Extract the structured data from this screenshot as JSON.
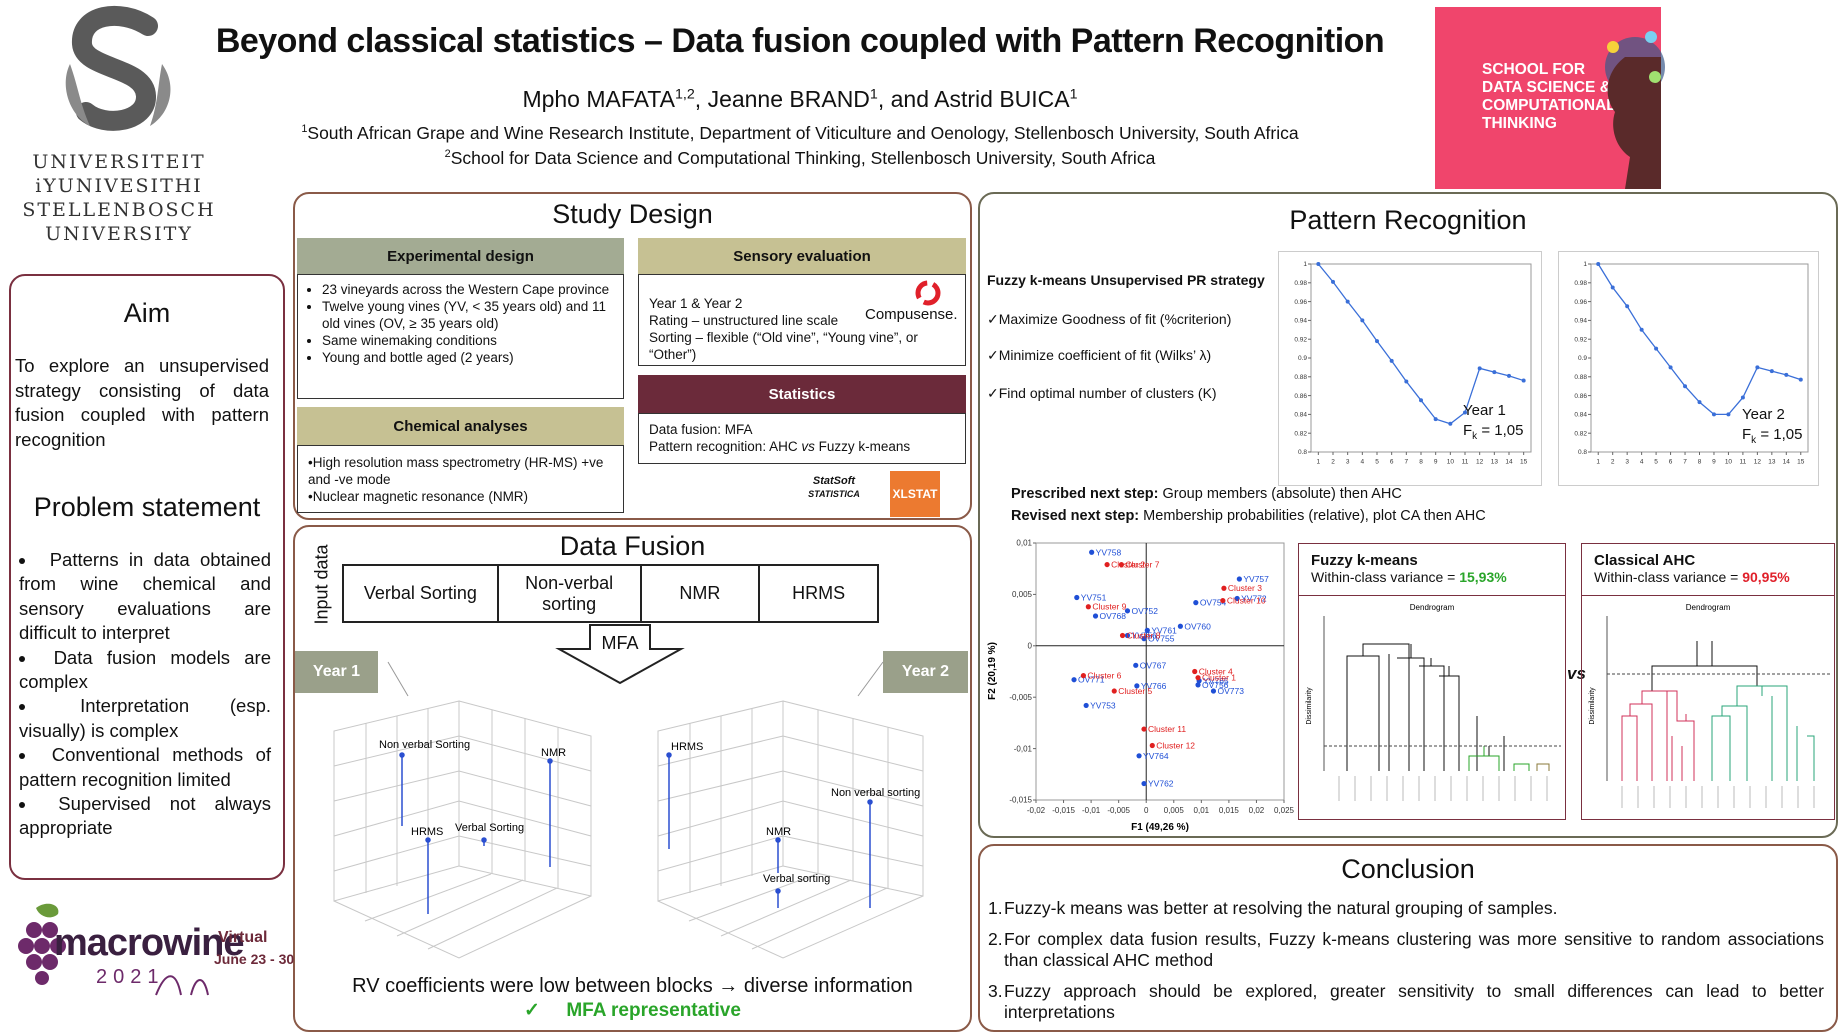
{
  "header": {
    "title": "Beyond classical statistics – Data fusion coupled with Pattern Recognition",
    "authors": [
      {
        "name": "Mpho MAFATA",
        "sup": "1,2",
        "after": ","
      },
      {
        "name": "Jeanne BRAND",
        "sup": "1",
        "after": ", and"
      },
      {
        "name": "Astrid BUICA",
        "sup": "1"
      }
    ],
    "affiliations": [
      {
        "sup": "1",
        "text": "South African Grape and Wine Research Institute, Department of Viticulture and Oenology, Stellenbosch University, South Africa"
      },
      {
        "sup": "2",
        "text": "School for Data Science and Computational Thinking, Stellenbosch University, South Africa"
      }
    ]
  },
  "university": {
    "lines": [
      "UNIVERSITEIT",
      "iYUNIVESITHI",
      "STELLENBOSCH",
      "UNIVERSITY"
    ]
  },
  "school": {
    "lines": [
      "SCHOOL FOR",
      "DATA SCIENCE &",
      "COMPUTATIONAL",
      "THINKING"
    ]
  },
  "aim": {
    "title": "Aim",
    "text": "To explore an unsupervised strategy consisting of data fusion coupled with pattern recognition"
  },
  "problem": {
    "title": "Problem statement",
    "items": [
      "Patterns in data obtained from wine chemical and sensory evaluations are difficult to interpret",
      "Data fusion models are complex",
      "Interpretation (esp. visually) is complex",
      "Conventional methods of pattern recognition limited",
      "Supervised not always appropriate"
    ]
  },
  "study_design": {
    "title": "Study Design",
    "experimental": {
      "title": "Experimental design",
      "items": [
        "23 vineyards across the Western Cape province",
        "Twelve young vines (YV, < 35 years old) and 11 old vines (OV, ≥ 35 years old)",
        "Same winemaking conditions",
        "Young and bottle aged (2 years)"
      ]
    },
    "chemical": {
      "title": "Chemical analyses",
      "lines": [
        "•High resolution mass spectrometry (HR-MS) +ve and -ve mode",
        "•Nuclear magnetic resonance (NMR)"
      ]
    },
    "sensory": {
      "title": "Sensory evaluation",
      "lines": [
        "Year 1 & Year 2",
        "Rating – unstructured line scale",
        "Sorting – flexible (“Old vine”, “Young vine”, or “Other”)"
      ],
      "brand": "Compusense."
    },
    "statistics": {
      "title": "Statistics",
      "line": "Data fusion: MFA",
      "recognition": {
        "before": "Pattern recognition: AHC",
        "em": "vs",
        "after": "Fuzzy k-means"
      }
    },
    "software": [
      "StatSoft",
      "STATISTICA",
      "XLSTAT"
    ]
  },
  "data_fusion": {
    "title": "Data Fusion",
    "input_label": "Input data",
    "blocks": [
      "Verbal Sorting",
      "Non-verbal sorting",
      "NMR",
      "HRMS"
    ],
    "method": "MFA",
    "years": [
      "Year 1",
      "Year 2"
    ],
    "plots": [
      {
        "labels": [
          "Non verbal Sorting",
          "NMR",
          "HRMS",
          "Verbal Sorting"
        ]
      },
      {
        "labels": [
          "HRMS",
          "Non verbal sorting",
          "NMR",
          "Verbal sorting"
        ]
      }
    ],
    "finding": "RV coefficients were low between blocks → diverse information",
    "check": "✓",
    "conclusion": "MFA representative"
  },
  "pattern_recognition": {
    "title": "Pattern Recognition",
    "strategy": {
      "title": "Fuzzy k-means Unsupervised PR strategy",
      "items": [
        "✓Maximize Goodness of fit (%criterion)",
        "✓Minimize coefficient of fit (Wilks’ λ)",
        "✓Find optimal number of clusters (K)"
      ]
    },
    "charts": [
      {
        "type": "line",
        "label": "Year 1",
        "f": "F",
        "f_sub": "k",
        "f_value": "= 1,05",
        "color": "#3a6fd8",
        "x": [
          1,
          2,
          3,
          4,
          5,
          6,
          7,
          8,
          9,
          10,
          11,
          12,
          13,
          14,
          15
        ],
        "values": [
          1,
          0.981,
          0.96,
          0.94,
          0.918,
          0.897,
          0.875,
          0.855,
          0.835,
          0.83,
          0.842,
          0.889,
          0.885,
          0.881,
          0.876
        ],
        "xlim": [
          0.5,
          15.5
        ],
        "ylim": [
          0.8,
          1
        ],
        "xticks": [
          1,
          2,
          3,
          4,
          5,
          6,
          7,
          8,
          9,
          10,
          11,
          12,
          13,
          14,
          15
        ],
        "yticks": [
          0.8,
          0.82,
          0.84,
          0.86,
          0.88,
          0.9,
          0.92,
          0.94,
          0.96,
          0.98,
          1
        ]
      },
      {
        "type": "line",
        "label": "Year 2",
        "f": "F",
        "f_sub": "k",
        "f_value": "= 1,05",
        "color": "#3a6fd8",
        "x": [
          1,
          2,
          3,
          4,
          5,
          6,
          7,
          8,
          9,
          10,
          11,
          12,
          13,
          14,
          15
        ],
        "values": [
          1,
          0.975,
          0.955,
          0.93,
          0.91,
          0.89,
          0.87,
          0.853,
          0.84,
          0.84,
          0.858,
          0.89,
          0.886,
          0.882,
          0.877
        ],
        "xlim": [
          0.5,
          15.5
        ],
        "ylim": [
          0.8,
          1
        ],
        "xticks": [
          1,
          2,
          3,
          4,
          5,
          6,
          7,
          8,
          9,
          10,
          11,
          12,
          13,
          14,
          15
        ],
        "yticks": [
          0.8,
          0.82,
          0.84,
          0.86,
          0.88,
          0.9,
          0.92,
          0.94,
          0.96,
          0.98,
          1
        ]
      }
    ],
    "next_steps": [
      {
        "label": "Prescribed next step:",
        "text": "Group members (absolute) then AHC"
      },
      {
        "label": "Revised next step:",
        "text": "Membership probabilities (relative), plot CA then AHC"
      }
    ],
    "scatter": {
      "type": "scatter",
      "x_label": "F1 (49,26 %)",
      "y_label": "F2 (20,19 %)",
      "xlim": [
        -0.02,
        0.025
      ],
      "ylim": [
        -0.015,
        0.01
      ],
      "xticks": [
        {
          "value": -0.02,
          "label": "-0,02"
        },
        {
          "value": -0.015,
          "label": "-0,015"
        },
        {
          "value": -0.01,
          "label": "-0,01"
        },
        {
          "value": -0.005,
          "label": "-0,005"
        },
        0,
        {
          "value": 0.005,
          "label": "0,005"
        },
        {
          "value": 0.01,
          "label": "0,01"
        },
        {
          "value": 0.015,
          "label": "0,015"
        },
        {
          "value": 0.02,
          "label": "0,02"
        },
        {
          "value": 0.025,
          "label": "0,025"
        }
      ],
      "yticks": [
        {
          "value": -0.015,
          "label": "-0,015"
        },
        {
          "value": -0.01,
          "label": "-0,01"
        },
        {
          "value": -0.005,
          "label": "-0,005"
        },
        0,
        {
          "value": 0.005,
          "label": "0,005"
        },
        {
          "value": 0.01,
          "label": "0,01"
        }
      ],
      "series": [
        {
          "color": "#1f4fd6",
          "labels": [
            "YV758",
            "YV757",
            "YV772",
            "OV754",
            "YV751",
            "OV768",
            "OV752",
            "OV760",
            "YV761",
            "OV755",
            "YV756",
            "OV767",
            "OV771",
            "YV766",
            "YV765",
            "OV756",
            "OV773",
            "YV753",
            "YV764",
            "YV762"
          ],
          "x": [
            -0.0099,
            0.0169,
            0.0165,
            0.009,
            -0.0126,
            -0.0092,
            -0.0034,
            0.0062,
            0.0002,
            -0.0004,
            -0.0034,
            -0.0019,
            -0.0131,
            -0.0017,
            0.0096,
            0.0094,
            0.0122,
            -0.0109,
            -0.0013,
            -0.0004
          ],
          "values": [
            0.0091,
            0.0065,
            0.0046,
            0.0042,
            0.0047,
            0.0029,
            0.0034,
            0.0019,
            0.0015,
            0.0007,
            0.001,
            -0.0019,
            -0.0033,
            -0.0039,
            -0.0034,
            -0.0038,
            -0.0044,
            -0.0058,
            -0.0107,
            -0.0134
          ]
        },
        {
          "color": "#e02020",
          "labels": [
            "Cluster 2",
            "Cluster 7",
            "Cluster 3",
            "Cluster 10",
            "Cluster 9",
            "Cluster 8",
            "Cluster 6",
            "Cluster 5",
            "Cluster 4",
            "Cluster 1",
            "Cluster 11",
            "Cluster 12"
          ],
          "x": [
            -0.0071,
            -0.0045,
            0.0141,
            0.0139,
            -0.0105,
            -0.0043,
            -0.0114,
            -0.0058,
            0.0088,
            0.0094,
            -0.0004,
            0.0011
          ],
          "values": [
            0.0079,
            0.0079,
            0.0056,
            0.0044,
            0.0038,
            0.001,
            -0.0029,
            -0.0044,
            -0.0025,
            -0.0031,
            -0.0081,
            -0.0097
          ]
        }
      ]
    },
    "fuzzy": {
      "title": "Fuzzy k-means",
      "variance_label": "Within-class variance =",
      "variance": "15,93%",
      "variance_color": "#2aa52a",
      "dendrogram": "Dendrogram",
      "y_label": "Dissimilarity"
    },
    "ahc": {
      "title": "Classical AHC",
      "variance_label": "Within-class variance =",
      "variance": "90,95%",
      "variance_color": "#e0202a",
      "dendrogram": "Dendrogram",
      "y_label": "Dissimilarity"
    },
    "vs": "vs"
  },
  "conclusion": {
    "title": "Conclusion",
    "items": [
      {
        "num": "1.",
        "text": "Fuzzy-k means was better at resolving the natural grouping of samples."
      },
      {
        "num": "2.",
        "text": "For complex data fusion results, Fuzzy k-means clustering was more sensitive to random associations than classical AHC method"
      },
      {
        "num": "3.",
        "text": "Fuzzy approach should be explored, greater sensitivity to small differences can lead to better interpretations"
      }
    ]
  },
  "conference": {
    "name": "macrowine",
    "year": "2021",
    "mode": "Virtual",
    "dates": "June 23 - 30"
  }
}
